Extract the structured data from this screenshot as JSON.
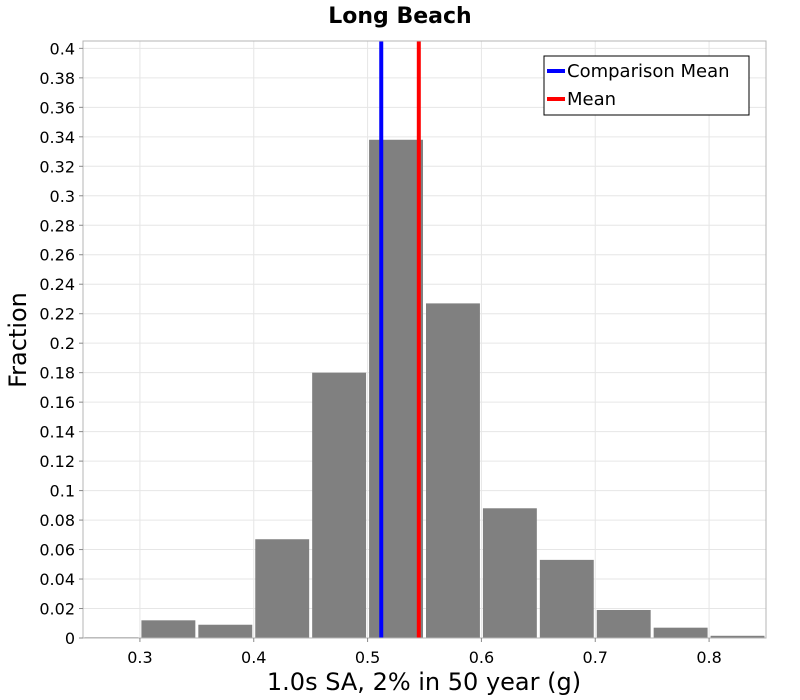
{
  "chart_data": {
    "type": "bar",
    "title": "Long Beach",
    "xlabel": "1.0s SA, 2% in 50 year (g)",
    "ylabel": "Fraction",
    "xlim": [
      0.25,
      0.85
    ],
    "ylim": [
      0,
      0.405
    ],
    "xticks": [
      "0.3",
      "0.4",
      "0.5",
      "0.6",
      "0.7",
      "0.8"
    ],
    "yticks": [
      "0",
      "0.02",
      "0.04",
      "0.06",
      "0.08",
      "0.1",
      "0.12",
      "0.14",
      "0.16",
      "0.18",
      "0.2",
      "0.22",
      "0.24",
      "0.26",
      "0.28",
      "0.3",
      "0.32",
      "0.34",
      "0.36",
      "0.38",
      "0.4"
    ],
    "bin_width": 0.05,
    "bins": [
      {
        "center": 0.275,
        "value": 0.0005
      },
      {
        "center": 0.325,
        "value": 0.012
      },
      {
        "center": 0.375,
        "value": 0.009
      },
      {
        "center": 0.425,
        "value": 0.067
      },
      {
        "center": 0.475,
        "value": 0.18
      },
      {
        "center": 0.525,
        "value": 0.338
      },
      {
        "center": 0.575,
        "value": 0.227
      },
      {
        "center": 0.625,
        "value": 0.088
      },
      {
        "center": 0.675,
        "value": 0.053
      },
      {
        "center": 0.725,
        "value": 0.019
      },
      {
        "center": 0.775,
        "value": 0.007
      },
      {
        "center": 0.825,
        "value": 0.0015
      }
    ],
    "bar_color": "#808080",
    "lines": [
      {
        "name": "Comparison Mean",
        "x": 0.512,
        "color": "#0000ff"
      },
      {
        "name": "Mean",
        "x": 0.545,
        "color": "#ff0000"
      }
    ],
    "grid": true,
    "legend_position": "top-right"
  }
}
